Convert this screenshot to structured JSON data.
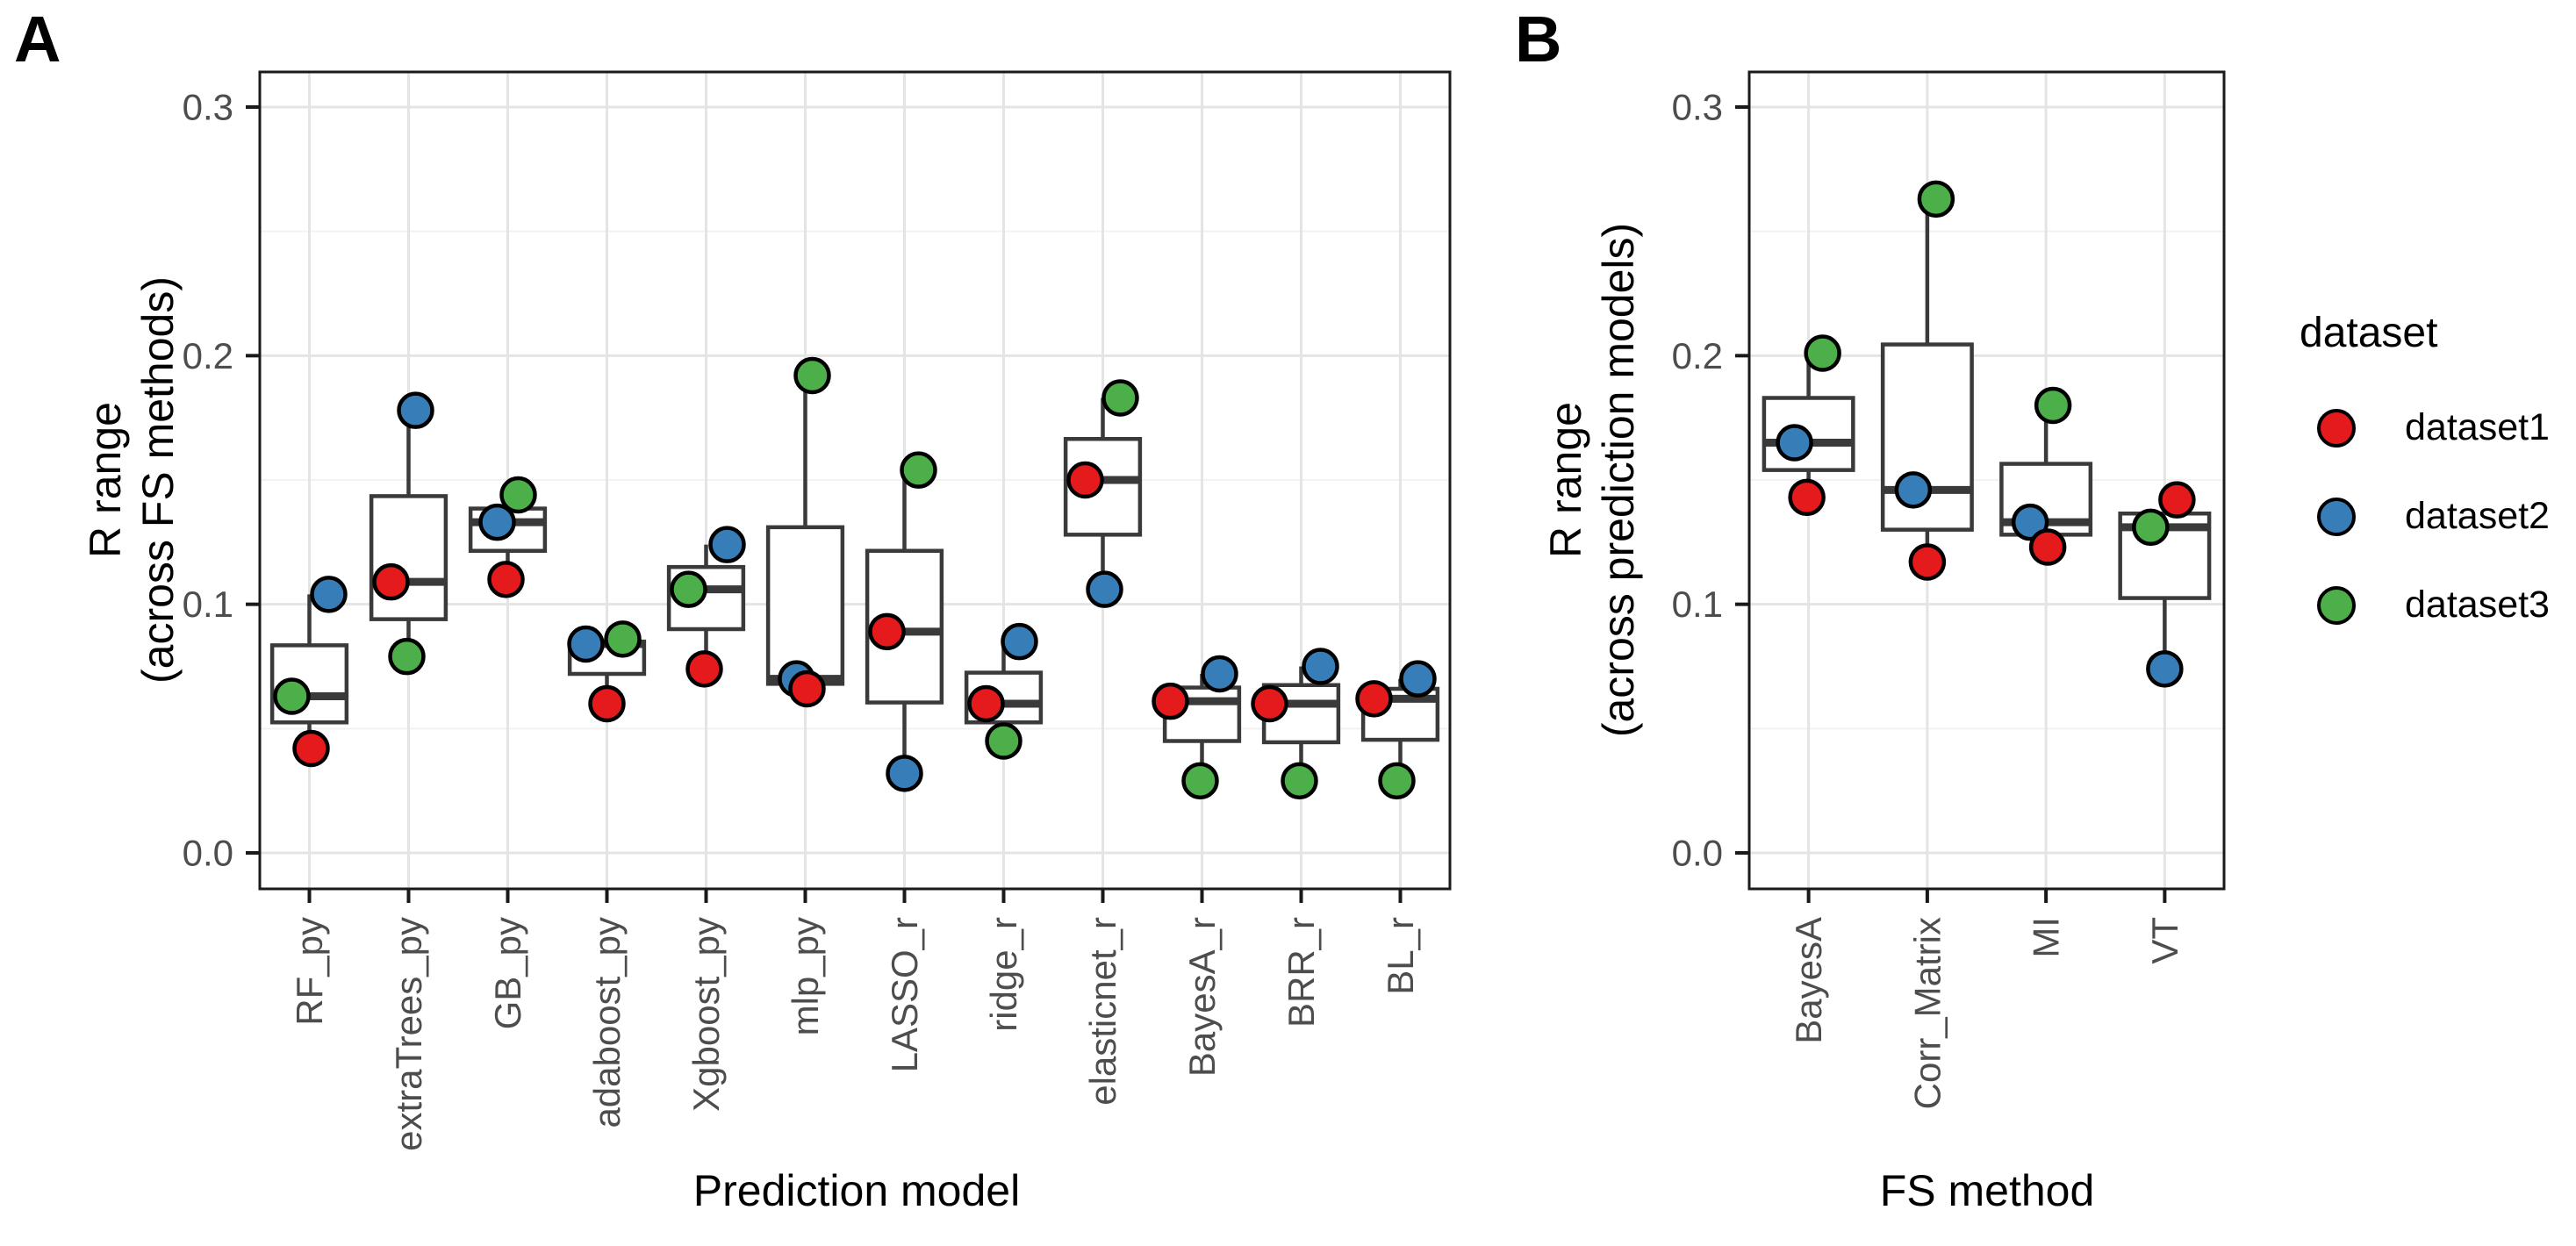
{
  "figure": {
    "panel_a_label": "A",
    "panel_b_label": "B",
    "background": "#FFFFFF"
  },
  "colors": {
    "dataset1": "#E41A1C",
    "dataset2": "#377EB8",
    "dataset3": "#4DAF4A",
    "point_stroke": "#000000",
    "box_stroke": "#3A3A3A",
    "box_fill": "#FFFFFF",
    "grid_major": "#E4E4E4",
    "grid_minor": "#F2F2F2",
    "axis_text": "#4D4D4D",
    "axis_line": "#1A1A1A"
  },
  "legend": {
    "title": "dataset",
    "items": [
      {
        "label": "dataset1",
        "color_key": "dataset1"
      },
      {
        "label": "dataset2",
        "color_key": "dataset2"
      },
      {
        "label": "dataset3",
        "color_key": "dataset3"
      }
    ]
  },
  "chart_data": [
    {
      "type": "boxplot_with_points",
      "panel": "A",
      "xlabel": "Prediction model",
      "ylabel": "R range\n(across FS methods)",
      "ylim": [
        0,
        0.3
      ],
      "yticks": [
        0,
        0.1,
        0.2,
        0.3
      ],
      "ytick_labels": [
        "0.0",
        "0.1",
        "0.2",
        "0.3"
      ],
      "yminor": [
        0.05,
        0.15,
        0.25
      ],
      "grid": true,
      "legend_position": "right-of-figure",
      "categories": [
        "RF_py",
        "extraTrees_py",
        "GB_py",
        "adaboost_py",
        "Xgboost_py",
        "mlp_py",
        "LASSO_r",
        "ridge_r",
        "elasticnet_r",
        "BayesA_r",
        "BRR_r",
        "BL_r"
      ],
      "series": [
        {
          "name": "dataset1",
          "color_key": "dataset1",
          "values": [
            0.042,
            0.109,
            0.11,
            0.06,
            0.074,
            0.066,
            0.089,
            0.06,
            0.15,
            0.061,
            0.06,
            0.062
          ],
          "dx": [
            2,
            -20,
            -2,
            0,
            -2,
            2,
            -20,
            -20,
            -20,
            -36,
            -36,
            -30
          ]
        },
        {
          "name": "dataset2",
          "color_key": "dataset2",
          "values": [
            0.104,
            0.178,
            0.133,
            0.084,
            0.124,
            0.07,
            0.032,
            0.085,
            0.106,
            0.072,
            0.075,
            0.07
          ],
          "dx": [
            22,
            8,
            -12,
            -24,
            24,
            -10,
            0,
            18,
            2,
            20,
            22,
            20
          ]
        },
        {
          "name": "dataset3",
          "color_key": "dataset3",
          "values": [
            0.063,
            0.079,
            0.144,
            0.086,
            0.106,
            0.192,
            0.154,
            0.045,
            0.183,
            0.029,
            0.029,
            0.029
          ],
          "dx": [
            -20,
            -2,
            12,
            18,
            -20,
            8,
            16,
            0,
            20,
            -2,
            -2,
            -4
          ]
        }
      ],
      "box_stats": [
        {
          "category": "RF_py",
          "min": 0.042,
          "q1": 0.0525,
          "median": 0.063,
          "q3": 0.0835,
          "max": 0.104
        },
        {
          "category": "extraTrees_py",
          "min": 0.079,
          "q1": 0.094,
          "median": 0.109,
          "q3": 0.1435,
          "max": 0.178
        },
        {
          "category": "GB_py",
          "min": 0.11,
          "q1": 0.1215,
          "median": 0.133,
          "q3": 0.1385,
          "max": 0.144
        },
        {
          "category": "adaboost_py",
          "min": 0.06,
          "q1": 0.072,
          "median": 0.084,
          "q3": 0.085,
          "max": 0.086
        },
        {
          "category": "Xgboost_py",
          "min": 0.074,
          "q1": 0.09,
          "median": 0.106,
          "q3": 0.115,
          "max": 0.124
        },
        {
          "category": "mlp_py",
          "min": 0.066,
          "q1": 0.068,
          "median": 0.07,
          "q3": 0.131,
          "max": 0.192
        },
        {
          "category": "LASSO_r",
          "min": 0.032,
          "q1": 0.0605,
          "median": 0.089,
          "q3": 0.1215,
          "max": 0.154
        },
        {
          "category": "ridge_r",
          "min": 0.045,
          "q1": 0.0525,
          "median": 0.06,
          "q3": 0.0725,
          "max": 0.085
        },
        {
          "category": "elasticnet_r",
          "min": 0.106,
          "q1": 0.128,
          "median": 0.15,
          "q3": 0.1665,
          "max": 0.183
        },
        {
          "category": "BayesA_r",
          "min": 0.029,
          "q1": 0.045,
          "median": 0.061,
          "q3": 0.0665,
          "max": 0.072
        },
        {
          "category": "BRR_r",
          "min": 0.029,
          "q1": 0.0445,
          "median": 0.06,
          "q3": 0.0675,
          "max": 0.075
        },
        {
          "category": "BL_r",
          "min": 0.029,
          "q1": 0.0455,
          "median": 0.062,
          "q3": 0.066,
          "max": 0.07
        }
      ]
    },
    {
      "type": "boxplot_with_points",
      "panel": "B",
      "xlabel": "FS method",
      "ylabel": "R range\n(across prediction models)",
      "ylim": [
        0,
        0.3
      ],
      "yticks": [
        0,
        0.1,
        0.2,
        0.3
      ],
      "ytick_labels": [
        "0.0",
        "0.1",
        "0.2",
        "0.3"
      ],
      "yminor": [
        0.05,
        0.15,
        0.25
      ],
      "grid": true,
      "legend_position": "right-of-figure",
      "categories": [
        "BayesA",
        "Corr_Matrix",
        "MI",
        "VT"
      ],
      "series": [
        {
          "name": "dataset1",
          "color_key": "dataset1",
          "values": [
            0.143,
            0.117,
            0.123,
            0.142
          ],
          "dx": [
            -2,
            0,
            2,
            14
          ]
        },
        {
          "name": "dataset2",
          "color_key": "dataset2",
          "values": [
            0.165,
            0.146,
            0.133,
            0.074
          ],
          "dx": [
            -16,
            -16,
            -18,
            0
          ]
        },
        {
          "name": "dataset3",
          "color_key": "dataset3",
          "values": [
            0.201,
            0.263,
            0.18,
            0.131
          ],
          "dx": [
            16,
            10,
            8,
            -16
          ]
        }
      ],
      "box_stats": [
        {
          "category": "BayesA",
          "min": 0.143,
          "q1": 0.154,
          "median": 0.165,
          "q3": 0.183,
          "max": 0.201
        },
        {
          "category": "Corr_Matrix",
          "min": 0.117,
          "q1": 0.13,
          "median": 0.146,
          "q3": 0.2045,
          "max": 0.263
        },
        {
          "category": "MI",
          "min": 0.123,
          "q1": 0.128,
          "median": 0.133,
          "q3": 0.1565,
          "max": 0.18
        },
        {
          "category": "VT",
          "min": 0.074,
          "q1": 0.1025,
          "median": 0.131,
          "q3": 0.1365,
          "max": 0.142
        }
      ]
    }
  ]
}
